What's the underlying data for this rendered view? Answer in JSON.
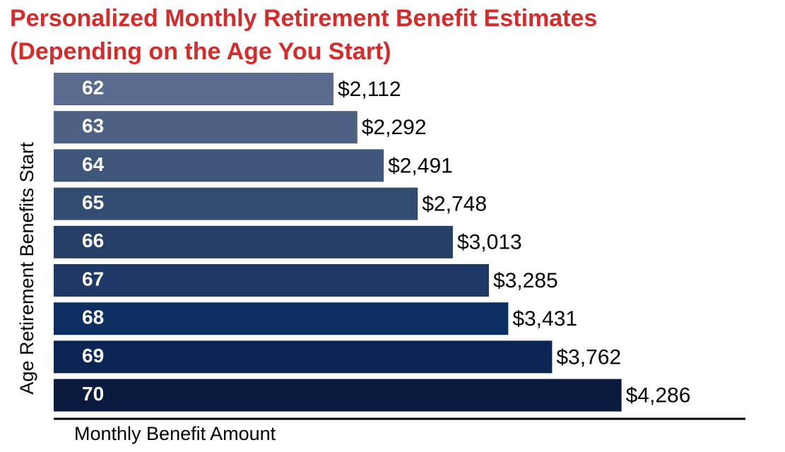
{
  "chart_data": {
    "type": "bar",
    "orientation": "horizontal",
    "title": [
      "Personalized Monthly Retirement Benefit Estimates",
      "(Depending on the Age You Start)"
    ],
    "ylabel": "Age Retirement Benefits Start",
    "xlabel": "Monthly Benefit Amount",
    "categories": [
      "62",
      "63",
      "64",
      "65",
      "66",
      "67",
      "68",
      "69",
      "70"
    ],
    "values": [
      2112,
      2292,
      2491,
      2748,
      3013,
      3285,
      3431,
      3762,
      4286
    ],
    "value_labels": [
      "$2,112",
      "$2,292",
      "$2,491",
      "$2,748",
      "$3,013",
      "$3,285",
      "$3,431",
      "$3,762",
      "$4,286"
    ],
    "colors": [
      "#5b6b8e",
      "#4d6184",
      "#40577b",
      "#334c71",
      "#253f69",
      "#1e3966",
      "#0e2f61",
      "#0b2555",
      "#0a1a3e"
    ],
    "xlim": [
      0,
      4800
    ]
  }
}
